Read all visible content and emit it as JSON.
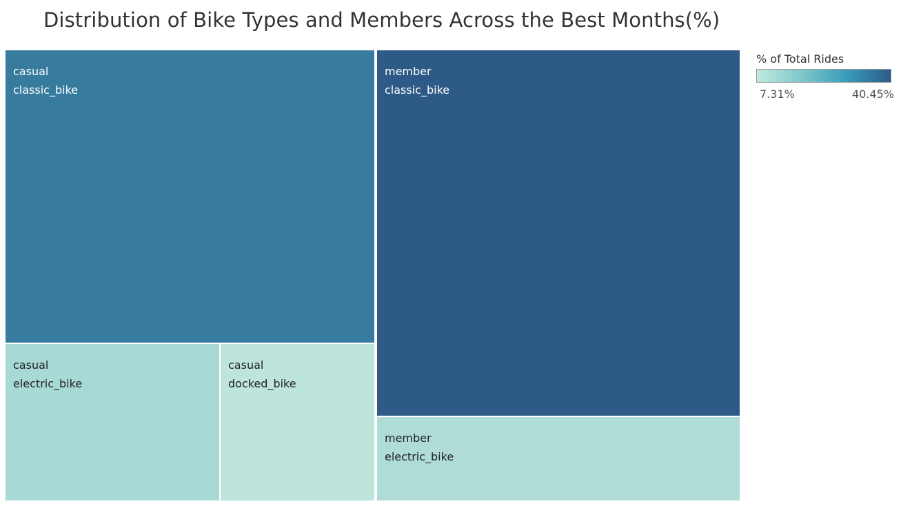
{
  "chart_data": {
    "type": "treemap",
    "title": "Distribution of Bike Types and Members Across the Best Months(%)",
    "tiles": [
      {
        "member_type": "casual",
        "bike_type": "classic_bike",
        "color": "#377b9e",
        "text_color": "#ffffff"
      },
      {
        "member_type": "casual",
        "bike_type": "electric_bike",
        "color": "#a7d9d5",
        "text_color": "#222222"
      },
      {
        "member_type": "casual",
        "bike_type": "docked_bike",
        "color": "#bde5db",
        "text_color": "#222222"
      },
      {
        "member_type": "member",
        "bike_type": "classic_bike",
        "color": "#2e5a87",
        "text_color": "#ffffff"
      },
      {
        "member_type": "member",
        "bike_type": "electric_bike",
        "color": "#afdcd7",
        "text_color": "#222222"
      }
    ],
    "legend": {
      "title": "% of Total Rides",
      "min_label": "7.31%",
      "max_label": "40.45%",
      "gradient_colors": [
        "#c1e9dc",
        "#7fc7cc",
        "#3a9dba",
        "#2c5a88"
      ]
    }
  }
}
